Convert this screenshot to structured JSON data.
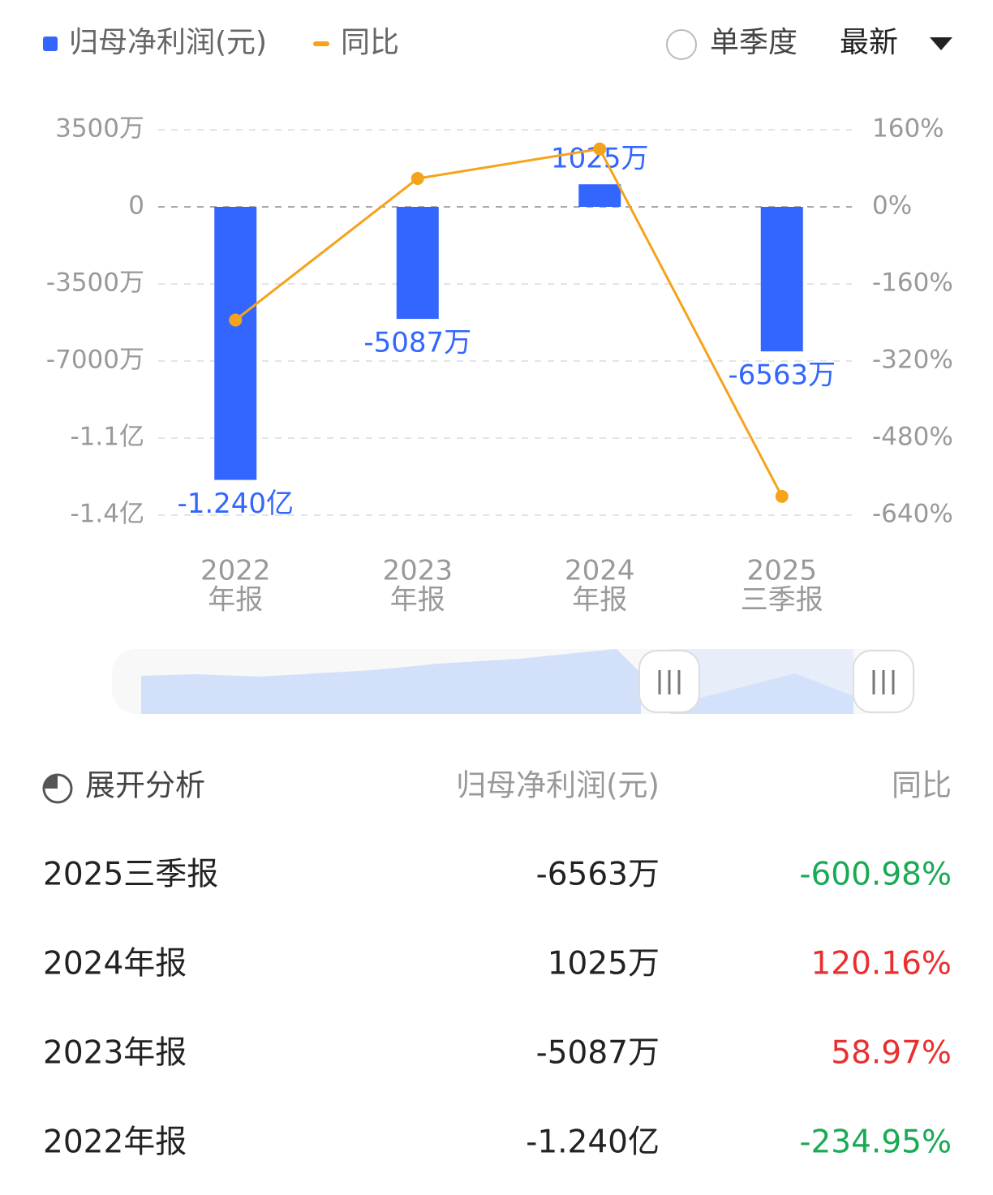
{
  "chart_data": {
    "type": "bar-line",
    "categories": [
      [
        "2022",
        "年报"
      ],
      [
        "2023",
        "年报"
      ],
      [
        "2024",
        "年报"
      ],
      [
        "2025",
        "三季报"
      ]
    ],
    "series": [
      {
        "name": "归母净利润(元)",
        "color": "#3366ff",
        "type": "bar",
        "values": [
          -124000000,
          -50870000,
          10250000,
          -65630000
        ],
        "value_labels": [
          "-1.240亿",
          "-5087万",
          "1025万",
          "-6563万"
        ]
      },
      {
        "name": "同比",
        "color": "#f5a31a",
        "type": "line",
        "axis": "y2",
        "values": [
          -234.95,
          58.97,
          120.16,
          -600.98
        ]
      }
    ],
    "ylim": [
      -140000000,
      35000000
    ],
    "yticks": [
      {
        "value": 35000000,
        "label": "3500万"
      },
      0,
      {
        "value": -35000000,
        "label": "-3500万"
      },
      {
        "value": -70000000,
        "label": "-7000万"
      },
      {
        "value": -105000000,
        "label": "-1.1亿"
      },
      {
        "value": -140000000,
        "label": "-1.4亿"
      }
    ],
    "y2lim": [
      -640,
      160
    ],
    "y2ticks": [
      {
        "value": 160,
        "label": "160%"
      },
      {
        "value": 0,
        "label": "0%"
      },
      {
        "value": -160,
        "label": "-160%"
      },
      {
        "value": -320,
        "label": "-320%"
      },
      {
        "value": -480,
        "label": "-480%"
      },
      {
        "value": -640,
        "label": "-640%"
      }
    ],
    "grid": true
  },
  "controls": {
    "single_quarter": "单季度",
    "sort": "最新"
  },
  "table": {
    "header": [
      "展开分析",
      "归母净利润(元)",
      "同比"
    ],
    "rows": [
      {
        "period": "2025三季报",
        "value": "-6563万",
        "yoy": "-600.98%",
        "color": "#1aaa55"
      },
      {
        "period": "2024年报",
        "value": "1025万",
        "yoy": "120.16%",
        "color": "#e93030"
      },
      {
        "period": "2023年报",
        "value": "-5087万",
        "yoy": "58.97%",
        "color": "#e93030"
      },
      {
        "period": "2022年报",
        "value": "-1.240亿",
        "yoy": "-234.95%",
        "color": "#1aaa55"
      }
    ]
  }
}
